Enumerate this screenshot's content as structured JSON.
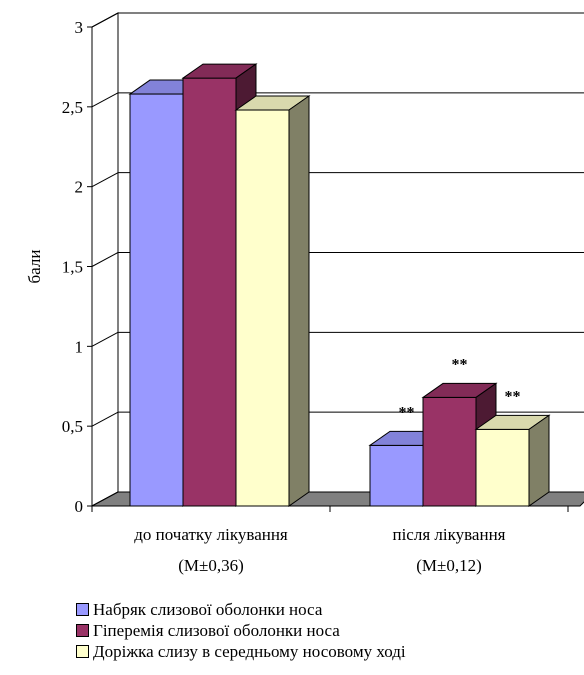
{
  "chart_data": {
    "type": "bar",
    "ylabel": "бали",
    "ylim": [
      0,
      3
    ],
    "yticks": [
      "0",
      "0,5",
      "1",
      "1,5",
      "2",
      "2,5",
      "3"
    ],
    "categories": [
      {
        "line1": "до початку лікування",
        "line2": "(M±0,36)"
      },
      {
        "line1": "після лікування",
        "line2": "(M±0,12)"
      }
    ],
    "series": [
      {
        "name": "Набряк слизової оболонки носа",
        "values": [
          2.58,
          0.38
        ],
        "color": "#9999ff"
      },
      {
        "name": "Гіперемія слизової оболонки носа",
        "values": [
          2.68,
          0.68
        ],
        "color": "#993366"
      },
      {
        "name": "Доріжка слизу в середньому носовому ході",
        "values": [
          2.48,
          0.48
        ],
        "color": "#ffffcc"
      }
    ],
    "annotations": [
      {
        "category": 1,
        "series": 0,
        "text": "**"
      },
      {
        "category": 1,
        "series": 1,
        "text": "**"
      },
      {
        "category": 1,
        "series": 2,
        "text": "**"
      }
    ],
    "grid": true,
    "legend_position": "bottom"
  }
}
